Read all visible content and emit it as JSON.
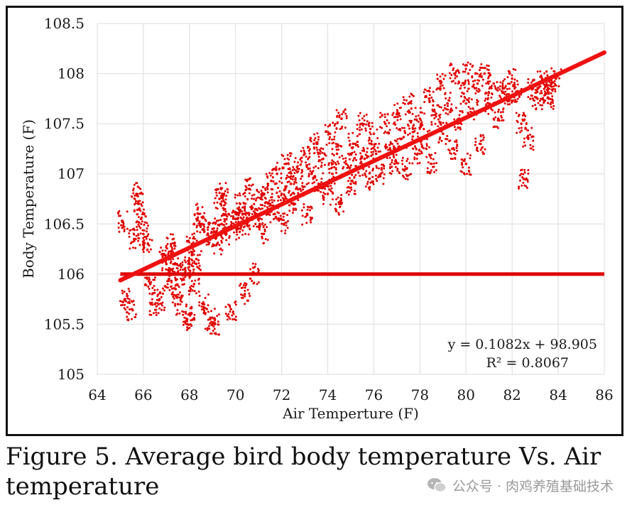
{
  "caption": {
    "text": "Figure 5.  Average bird body temperature Vs. Air temperature"
  },
  "watermark": {
    "text": "公众号 · 肉鸡养殖基础技术",
    "icon": "wechat-icon"
  },
  "chart_data": {
    "type": "scatter",
    "xlabel": "Air Temperture (F)",
    "ylabel": "Body Temperature (F)",
    "xlim": [
      64,
      86
    ],
    "ylim": [
      105,
      108.5
    ],
    "xticks": [
      64,
      66,
      68,
      70,
      72,
      74,
      76,
      78,
      80,
      82,
      84,
      86
    ],
    "yticks": [
      105,
      105.5,
      106,
      106.5,
      107,
      107.5,
      108,
      108.5
    ],
    "grid": true,
    "colors": {
      "points": "#e00000",
      "trendline": "#ee1111",
      "reference": "#dd0000"
    },
    "trendline": {
      "slope": 0.1082,
      "intercept": 98.905,
      "x_range": [
        65,
        86
      ]
    },
    "reference_line": {
      "y": 106,
      "x_range": [
        65,
        86
      ]
    },
    "equation_label": "y = 0.1082x + 98.905",
    "r2_label": "R² = 0.8067",
    "series": [
      {
        "points": [
          [
            65.1,
            106.52
          ],
          [
            65.2,
            105.75
          ],
          [
            65.5,
            105.65
          ],
          [
            65.6,
            106.35
          ],
          [
            65.7,
            106.8
          ],
          [
            65.8,
            106.7
          ],
          [
            65.9,
            106.55
          ],
          [
            66.0,
            106.4
          ],
          [
            66.2,
            106.3
          ],
          [
            66.3,
            105.9
          ],
          [
            66.5,
            105.7
          ],
          [
            66.7,
            105.75
          ],
          [
            66.9,
            106.2
          ],
          [
            67.0,
            106.1
          ],
          [
            67.1,
            105.95
          ],
          [
            67.2,
            106.3
          ],
          [
            67.3,
            106.1
          ],
          [
            67.4,
            105.85
          ],
          [
            67.5,
            105.7
          ],
          [
            67.6,
            106.0
          ],
          [
            67.8,
            106.05
          ],
          [
            67.9,
            105.55
          ],
          [
            68.0,
            105.6
          ],
          [
            68.0,
            106.1
          ],
          [
            68.1,
            106.3
          ],
          [
            68.2,
            105.9
          ],
          [
            68.3,
            106.15
          ],
          [
            68.4,
            106.6
          ],
          [
            68.5,
            106.5
          ],
          [
            68.6,
            105.7
          ],
          [
            68.8,
            106.4
          ],
          [
            68.9,
            105.55
          ],
          [
            69.0,
            106.45
          ],
          [
            69.1,
            105.5
          ],
          [
            69.2,
            106.3
          ],
          [
            69.3,
            106.75
          ],
          [
            69.4,
            106.5
          ],
          [
            69.5,
            106.8
          ],
          [
            69.6,
            106.4
          ],
          [
            69.7,
            106.6
          ],
          [
            69.8,
            105.65
          ],
          [
            70.0,
            106.55
          ],
          [
            70.1,
            106.45
          ],
          [
            70.2,
            106.7
          ],
          [
            70.3,
            106.6
          ],
          [
            70.4,
            105.8
          ],
          [
            70.5,
            106.5
          ],
          [
            70.6,
            106.85
          ],
          [
            70.7,
            106.65
          ],
          [
            70.8,
            106.0
          ],
          [
            71.0,
            106.55
          ],
          [
            71.1,
            106.75
          ],
          [
            71.2,
            106.4
          ],
          [
            71.4,
            106.9
          ],
          [
            71.5,
            106.7
          ],
          [
            71.7,
            106.6
          ],
          [
            71.8,
            107.0
          ],
          [
            72.0,
            106.8
          ],
          [
            72.1,
            106.5
          ],
          [
            72.2,
            107.1
          ],
          [
            72.4,
            106.9
          ],
          [
            72.5,
            106.7
          ],
          [
            72.7,
            107.05
          ],
          [
            72.8,
            106.85
          ],
          [
            73.0,
            107.2
          ],
          [
            73.1,
            106.6
          ],
          [
            73.3,
            107.0
          ],
          [
            73.4,
            107.3
          ],
          [
            73.6,
            106.9
          ],
          [
            73.8,
            107.15
          ],
          [
            74.0,
            106.8
          ],
          [
            74.1,
            107.4
          ],
          [
            74.2,
            107.0
          ],
          [
            74.4,
            107.2
          ],
          [
            74.5,
            106.7
          ],
          [
            74.6,
            107.55
          ],
          [
            74.8,
            107.1
          ],
          [
            75.0,
            106.9
          ],
          [
            75.1,
            107.3
          ],
          [
            75.3,
            107.05
          ],
          [
            75.5,
            107.5
          ],
          [
            75.6,
            107.15
          ],
          [
            75.8,
            106.95
          ],
          [
            76.0,
            107.4
          ],
          [
            76.1,
            107.2
          ],
          [
            76.3,
            107.0
          ],
          [
            76.5,
            107.5
          ],
          [
            76.7,
            107.25
          ],
          [
            76.9,
            107.1
          ],
          [
            77.0,
            107.6
          ],
          [
            77.2,
            107.35
          ],
          [
            77.4,
            107.05
          ],
          [
            77.5,
            107.7
          ],
          [
            77.7,
            107.45
          ],
          [
            77.9,
            107.2
          ],
          [
            78.0,
            107.55
          ],
          [
            78.2,
            107.35
          ],
          [
            78.4,
            107.75
          ],
          [
            78.5,
            107.1
          ],
          [
            78.7,
            107.6
          ],
          [
            78.9,
            107.9
          ],
          [
            79.0,
            107.4
          ],
          [
            79.2,
            107.7
          ],
          [
            79.4,
            107.25
          ],
          [
            79.5,
            108.0
          ],
          [
            79.7,
            107.55
          ],
          [
            79.9,
            107.8
          ],
          [
            80.0,
            107.1
          ],
          [
            80.1,
            108.0
          ],
          [
            80.3,
            107.65
          ],
          [
            80.5,
            107.9
          ],
          [
            80.6,
            107.3
          ],
          [
            80.8,
            108.0
          ],
          [
            81.0,
            107.7
          ],
          [
            81.2,
            107.9
          ],
          [
            81.4,
            107.55
          ],
          [
            81.6,
            107.85
          ],
          [
            81.8,
            107.75
          ],
          [
            82.0,
            107.95
          ],
          [
            82.2,
            107.8
          ],
          [
            82.4,
            107.5
          ],
          [
            82.5,
            106.95
          ],
          [
            82.7,
            107.35
          ],
          [
            82.9,
            107.85
          ],
          [
            83.1,
            107.75
          ],
          [
            83.3,
            107.95
          ],
          [
            83.5,
            107.8
          ],
          [
            83.7,
            107.9
          ],
          [
            83.9,
            107.95
          ],
          [
            83.6,
            107.75
          ]
        ]
      }
    ]
  }
}
